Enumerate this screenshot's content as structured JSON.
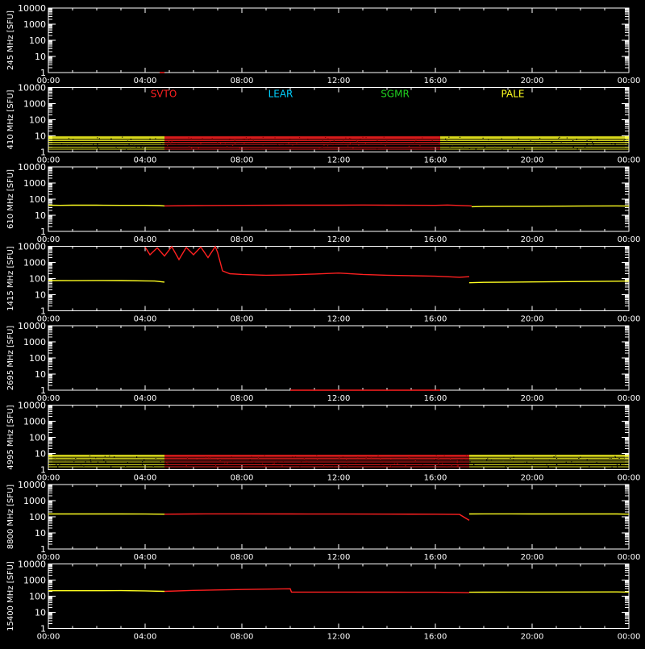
{
  "chart_data": {
    "type": "line",
    "x_ticks": [
      "00:00",
      "04:00",
      "08:00",
      "12:00",
      "16:00",
      "20:00",
      "00:00"
    ],
    "x_range_hours": [
      0,
      24
    ],
    "y_scale": "log",
    "y_range": [
      1,
      10000
    ],
    "y_ticks": [
      "10000",
      "1000",
      "100",
      "10",
      "1"
    ],
    "grid": false,
    "legend": {
      "placement": "top, inside second panel",
      "entries": [
        {
          "name": "SVTO",
          "color": "#ff2020"
        },
        {
          "name": "LEAR",
          "color": "#00d0ff"
        },
        {
          "name": "SGMR",
          "color": "#20d020"
        },
        {
          "name": "PALE",
          "color": "#ffff20"
        }
      ]
    },
    "colors": {
      "background": "#000000",
      "axes": "#ffffff",
      "svto": "#ff2020",
      "pale": "#ffff20"
    },
    "panels": [
      {
        "ylabel": "245 MHz [SFU]",
        "series": [
          {
            "name": "SVTO",
            "x": [
              4.6,
              4.8
            ],
            "y": [
              1,
              1
            ]
          }
        ]
      },
      {
        "ylabel": "410 MHz [SFU]",
        "noise_band": {
          "low": 1.5,
          "high": 9
        },
        "series": [
          {
            "name": "PALE",
            "x": [
              0,
              4.8
            ],
            "y": [
              5,
              5
            ]
          },
          {
            "name": "SVTO",
            "x": [
              4.8,
              16.2
            ],
            "y": [
              5,
              5
            ]
          },
          {
            "name": "PALE",
            "x": [
              16.2,
              24
            ],
            "y": [
              5,
              5
            ]
          }
        ]
      },
      {
        "ylabel": "610 MHz [SFU]",
        "series": [
          {
            "name": "PALE",
            "x": [
              0,
              0.5,
              1,
              2,
              3,
              4,
              4.6,
              4.8
            ],
            "y": [
              42,
              41,
              42,
              42,
              41,
              41,
              40,
              38
            ]
          },
          {
            "name": "SVTO",
            "x": [
              4.8,
              6,
              8,
              10,
              12,
              13,
              14,
              16,
              16.5,
              17.5
            ],
            "y": [
              38,
              40,
              41,
              42,
              42,
              43,
              42,
              41,
              43,
              38
            ]
          },
          {
            "name": "PALE",
            "x": [
              17.5,
              18,
              20,
              22,
              23.5,
              24
            ],
            "y": [
              34,
              35,
              36,
              37,
              38,
              37
            ]
          }
        ]
      },
      {
        "ylabel": "1415 MHz [SFU]",
        "series": [
          {
            "name": "PALE",
            "x": [
              0,
              1,
              2,
              3,
              4,
              4.4,
              4.8
            ],
            "y": [
              75,
              74,
              76,
              75,
              72,
              70,
              60
            ]
          },
          {
            "name": "SVTO",
            "x": [
              4.0,
              4.2,
              4.5,
              4.8,
              5.1,
              5.4,
              5.7,
              6.0,
              6.3,
              6.6,
              6.9,
              7.0,
              7.2,
              7.5,
              8.0,
              9.0,
              10.0,
              11.0,
              12.0,
              13.0,
              14.0,
              15.0,
              16.0,
              17.0,
              17.4
            ],
            "y": [
              9000,
              3000,
              8000,
              2500,
              9500,
              1500,
              8500,
              3000,
              9000,
              2000,
              9500,
              4000,
              300,
              200,
              180,
              160,
              170,
              190,
              220,
              180,
              160,
              150,
              140,
              120,
              130
            ]
          },
          {
            "name": "PALE",
            "x": [
              17.4,
              18,
              20,
              22,
              23.5,
              24
            ],
            "y": [
              55,
              58,
              62,
              65,
              68,
              70
            ]
          }
        ]
      },
      {
        "ylabel": "2695 MHz [SFU]",
        "series": [
          {
            "name": "SVTO",
            "x": [
              10.0,
              16.2
            ],
            "y": [
              1,
              1
            ]
          }
        ]
      },
      {
        "ylabel": "4995 MHz [SFU]",
        "noise_band": {
          "low": 1.5,
          "high": 8
        },
        "series": [
          {
            "name": "PALE",
            "x": [
              0,
              4.8
            ],
            "y": [
              4,
              4
            ]
          },
          {
            "name": "SVTO",
            "x": [
              4.8,
              17.4
            ],
            "y": [
              4,
              4
            ]
          },
          {
            "name": "PALE",
            "x": [
              17.4,
              24
            ],
            "y": [
              4,
              4
            ]
          }
        ]
      },
      {
        "ylabel": "8800 MHz [SFU]",
        "series": [
          {
            "name": "PALE",
            "x": [
              0,
              1,
              2,
              3,
              4,
              4.8
            ],
            "y": [
              150,
              150,
              149,
              150,
              148,
              145
            ]
          },
          {
            "name": "SVTO",
            "x": [
              4.8,
              6,
              8,
              10,
              12,
              14,
              16,
              17,
              17.4
            ],
            "y": [
              145,
              150,
              152,
              150,
              148,
              146,
              145,
              140,
              60
            ]
          },
          {
            "name": "PALE",
            "x": [
              17.4,
              18,
              20,
              22,
              23.5,
              24
            ],
            "y": [
              150,
              152,
              150,
              149,
              150,
              145
            ]
          }
        ]
      },
      {
        "ylabel": "15400 MHz [SFU]",
        "series": [
          {
            "name": "PALE",
            "x": [
              0,
              1,
              2,
              3,
              4,
              4.8
            ],
            "y": [
              220,
              220,
              218,
              222,
              215,
              200
            ]
          },
          {
            "name": "SVTO",
            "x": [
              4.8,
              6,
              8,
              10,
              10.05,
              12,
              14,
              16,
              17,
              17.4
            ],
            "y": [
              200,
              230,
              260,
              290,
              180,
              180,
              178,
              175,
              170,
              165
            ]
          },
          {
            "name": "PALE",
            "x": [
              17.4,
              18,
              20,
              22,
              23.5,
              24
            ],
            "y": [
              175,
              178,
              180,
              182,
              185,
              180
            ]
          }
        ]
      }
    ]
  }
}
